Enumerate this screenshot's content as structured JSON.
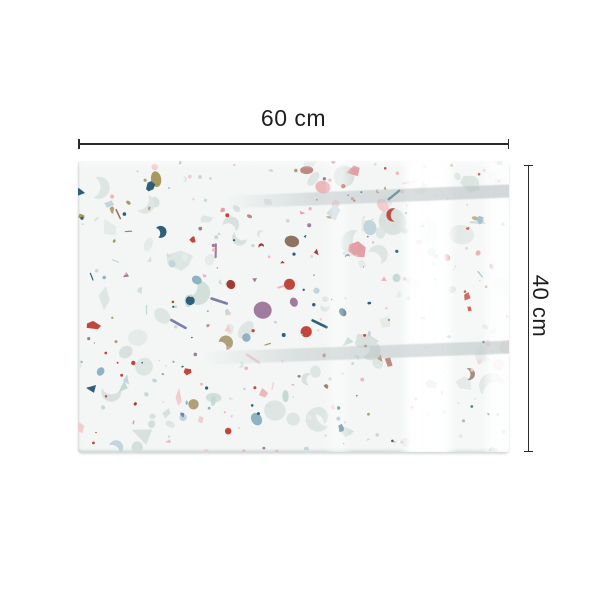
{
  "page": {
    "background": "#ffffff"
  },
  "product": {
    "name": "terrazzo-glass-splashback",
    "width_label": "60 cm",
    "height_label": "40 cm"
  },
  "dimension_style": {
    "line_color": "#2b2b2b",
    "text_color": "#1d1d1d"
  },
  "panel": {
    "background": "#f3f6f5",
    "reflection_tint": "#b8c1c3",
    "palette": {
      "grays": [
        [
          "#dee6e4",
          3
        ],
        [
          "#d9e1df",
          2
        ],
        [
          "#e5ebe9",
          2
        ],
        [
          "#d3dfd9",
          1
        ]
      ],
      "chips": [
        [
          "#ecb6ba",
          3
        ],
        [
          "#f2cdd0",
          2
        ],
        [
          "#e39fa5",
          1.5
        ],
        [
          "#c1473d",
          2
        ],
        [
          "#a33b33",
          0.7
        ],
        [
          "#2d6077",
          1.5
        ],
        [
          "#8fb3c2",
          1.2
        ],
        [
          "#c3d5dc",
          1.5
        ],
        [
          "#c2dad3",
          1.5
        ],
        [
          "#afa079",
          1.3
        ],
        [
          "#a07b9e",
          1.2
        ],
        [
          "#7d7fa8",
          0.5
        ],
        [
          "#a89a5e",
          0.8
        ],
        [
          "#bd8b80",
          0.8
        ],
        [
          "#8d7360",
          0.6
        ]
      ],
      "dots": [
        [
          "#c1473d",
          1.5
        ],
        [
          "#2d6077",
          1
        ],
        [
          "#ecb6ba",
          2
        ],
        [
          "#afa079",
          1
        ],
        [
          "#a07b9e",
          1
        ],
        [
          "#ccd6d3",
          2.5
        ],
        [
          "#8fb3c2",
          1
        ]
      ]
    }
  }
}
